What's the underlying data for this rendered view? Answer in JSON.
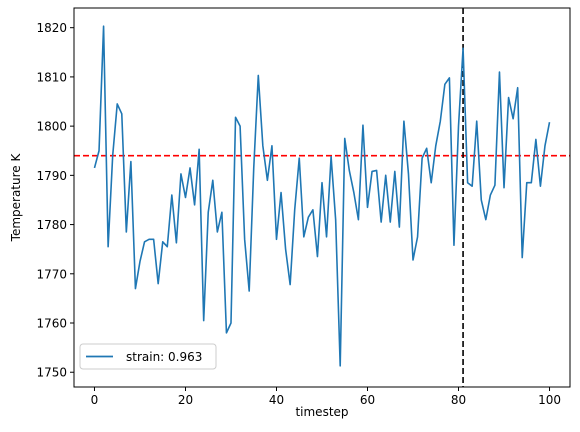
{
  "chart_data": {
    "type": "line",
    "xlabel": "timestep",
    "ylabel": "Temperature K",
    "xlim": [
      -4.5,
      104.5
    ],
    "ylim": [
      1747,
      1824
    ],
    "xticks": [
      0,
      20,
      40,
      60,
      80,
      100
    ],
    "yticks": [
      1750,
      1760,
      1770,
      1780,
      1790,
      1800,
      1810,
      1820
    ],
    "grid": false,
    "legend_position": "lower-left",
    "series": [
      {
        "name": "strain: 0.963",
        "color": "#1f77b4",
        "x": [
          0,
          1,
          2,
          3,
          4,
          5,
          6,
          7,
          8,
          9,
          10,
          11,
          12,
          13,
          14,
          15,
          16,
          17,
          18,
          19,
          20,
          21,
          22,
          23,
          24,
          25,
          26,
          27,
          28,
          29,
          30,
          31,
          32,
          33,
          34,
          35,
          36,
          37,
          38,
          39,
          40,
          41,
          42,
          43,
          44,
          45,
          46,
          47,
          48,
          49,
          50,
          51,
          52,
          53,
          54,
          55,
          56,
          57,
          58,
          59,
          60,
          61,
          62,
          63,
          64,
          65,
          66,
          67,
          68,
          69,
          70,
          71,
          72,
          73,
          74,
          75,
          76,
          77,
          78,
          79,
          80,
          81,
          82,
          83,
          84,
          85,
          86,
          87,
          88,
          89,
          90,
          91,
          92,
          93,
          94,
          95,
          96,
          97,
          98,
          99,
          100
        ],
        "y": [
          1791.5,
          1795,
          1820.3,
          1775.5,
          1794,
          1804.5,
          1802.5,
          1778.5,
          1792.8,
          1767,
          1772.5,
          1776.5,
          1777,
          1777,
          1768,
          1776.5,
          1775.5,
          1786,
          1776.3,
          1790.3,
          1785.5,
          1791.5,
          1784,
          1795.3,
          1760.5,
          1782.5,
          1789,
          1778.5,
          1782.5,
          1758,
          1760,
          1801.8,
          1800,
          1777,
          1766.5,
          1791.5,
          1810.3,
          1796,
          1789,
          1796,
          1777,
          1786.5,
          1775,
          1767.8,
          1783,
          1793.5,
          1777.5,
          1781.5,
          1783,
          1773.5,
          1788.5,
          1777.5,
          1793.8,
          1781,
          1751.3,
          1797.5,
          1791,
          1786.5,
          1781,
          1800.2,
          1783.5,
          1790.8,
          1791,
          1780.5,
          1790,
          1780.5,
          1790.8,
          1779.5,
          1801,
          1790.3,
          1772.8,
          1777.5,
          1793.5,
          1795.5,
          1788.5,
          1796,
          1801,
          1808.5,
          1809.8,
          1775.8,
          1800,
          1815.8,
          1788.5,
          1787.8,
          1801,
          1785,
          1781,
          1786,
          1788,
          1811,
          1787.5,
          1805.8,
          1801.5,
          1807.8,
          1773.3,
          1788.5,
          1788.5,
          1797.3,
          1787.8,
          1796,
          1800.8
        ]
      }
    ],
    "reference_lines": [
      {
        "orientation": "horizontal",
        "value": 1794,
        "color": "#ff0000",
        "style": "dashed"
      },
      {
        "orientation": "vertical",
        "value": 81,
        "color": "#000000",
        "style": "dashed"
      }
    ]
  }
}
